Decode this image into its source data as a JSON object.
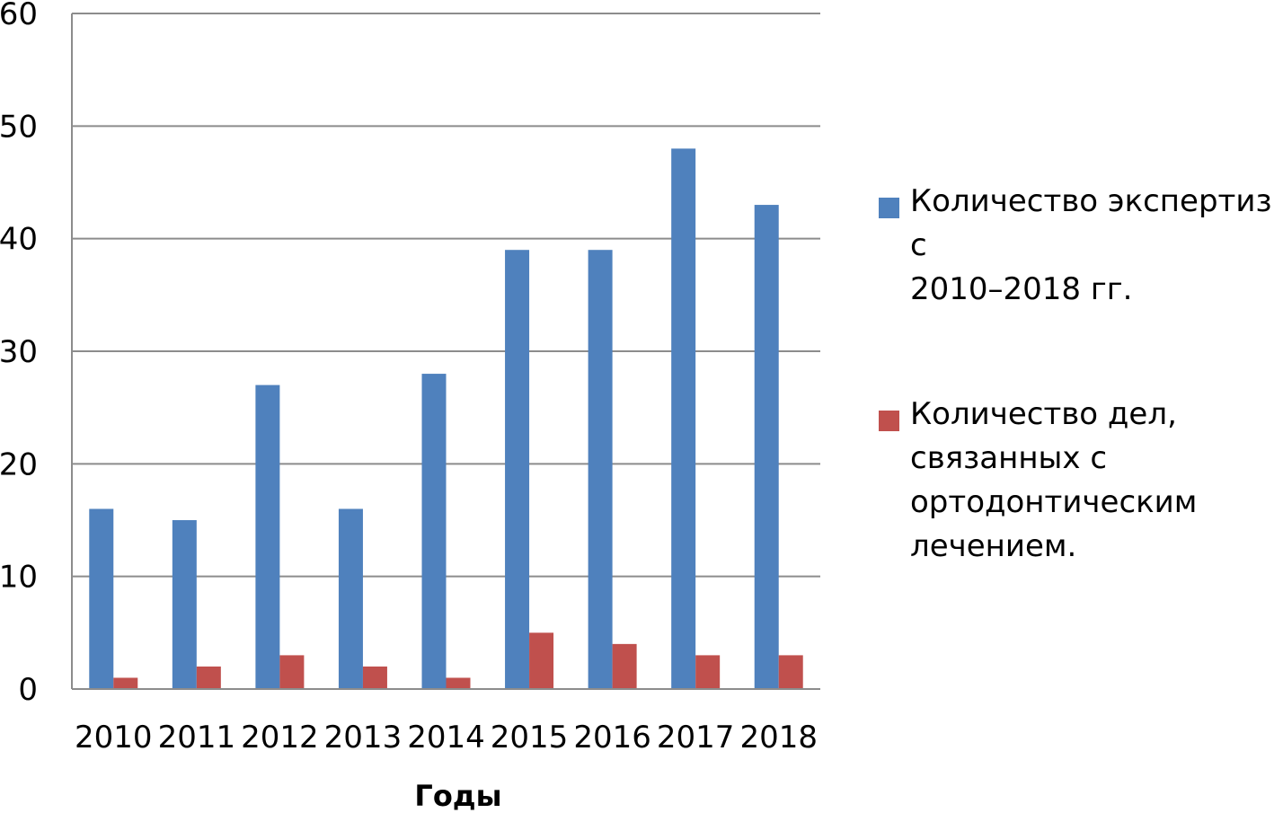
{
  "chart_data": {
    "type": "bar",
    "categories": [
      "2010",
      "2011",
      "2012",
      "2013",
      "2014",
      "2015",
      "2016",
      "2017",
      "2018"
    ],
    "series": [
      {
        "name": "Количество экспертиз с\n2010–2018 гг.",
        "color": "#4F81BD",
        "values": [
          16,
          15,
          27,
          16,
          28,
          39,
          39,
          48,
          43
        ]
      },
      {
        "name": "Количество дел,\nсвязанных с\nортодонтическим\nлечением.",
        "color": "#C0504D",
        "values": [
          1,
          2,
          3,
          2,
          1,
          5,
          4,
          3,
          3
        ]
      }
    ],
    "y_ticks": [
      "0",
      "10",
      "20",
      "30",
      "40",
      "50",
      "60"
    ],
    "xlabel": "Годы",
    "ylabel": "",
    "ylim": [
      0,
      60
    ],
    "grid": true,
    "legend_position": "right"
  }
}
